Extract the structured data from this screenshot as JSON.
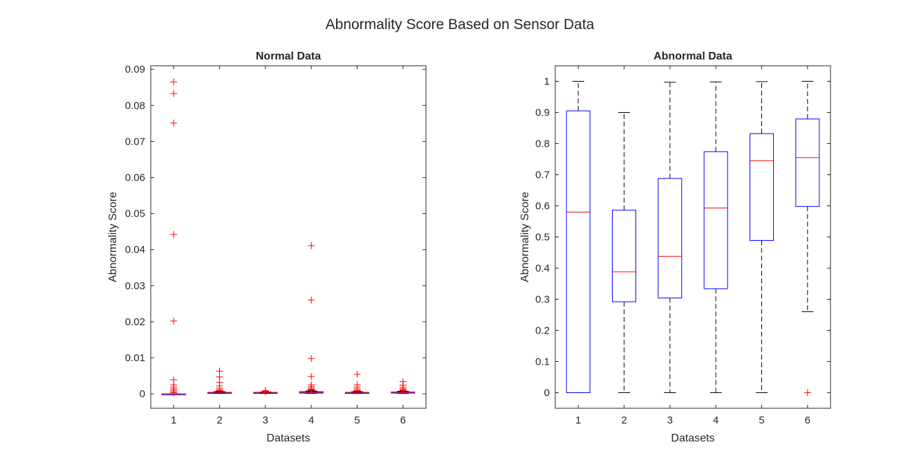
{
  "figure": {
    "title": "Abnormality Score Based on Sensor Data"
  },
  "chart_data": [
    {
      "type": "box",
      "title": "Normal Data",
      "xlabel": "Datasets",
      "ylabel": "Abnormality Score",
      "categories": [
        "1",
        "2",
        "3",
        "4",
        "5",
        "6"
      ],
      "ylim": [
        -0.004,
        0.091
      ],
      "yticks": [
        0,
        0.01,
        0.02,
        0.03,
        0.04,
        0.05,
        0.06,
        0.07,
        0.08,
        0.09
      ],
      "ytick_labels": [
        "0",
        "0.01",
        "0.02",
        "0.03",
        "0.04",
        "0.05",
        "0.06",
        "0.07",
        "0.08",
        "0.09"
      ],
      "colors": {
        "box": "#0000ff",
        "median": "#ff0000",
        "whisker": "#000000",
        "outlier": "#ff0000"
      },
      "boxes": [
        {
          "q1": 0,
          "median": 0,
          "q3": 0,
          "whisker_low": 0,
          "whisker_high": 0,
          "outliers": [
            0.0865,
            0.0833,
            0.0751,
            0.0442,
            0.0202,
            0.0039,
            0.0025,
            0.0019,
            0.0014,
            0.001,
            0.0006,
            0.0003
          ]
        },
        {
          "q1": 0.0002,
          "median": 0.0003,
          "q3": 0.0004,
          "whisker_low": 0.0001,
          "whisker_high": 0.0006,
          "outliers": [
            0.0063,
            0.0047,
            0.0032,
            0.0022,
            0.0016,
            0.0012,
            0.0009,
            0.0008
          ]
        },
        {
          "q1": 0.0002,
          "median": 0.0003,
          "q3": 0.0004,
          "whisker_low": 0.0001,
          "whisker_high": 0.0005,
          "outliers": [
            0.0009,
            0.0007,
            0.0006
          ]
        },
        {
          "q1": 0.0002,
          "median": 0.0004,
          "q3": 0.0006,
          "whisker_low": 0.0001,
          "whisker_high": 0.0008,
          "outliers": [
            0.0411,
            0.026,
            0.0098,
            0.0048,
            0.0025,
            0.002,
            0.0016,
            0.0013,
            0.0011,
            0.001
          ]
        },
        {
          "q1": 0.0002,
          "median": 0.0003,
          "q3": 0.0004,
          "whisker_low": 0.0001,
          "whisker_high": 0.0006,
          "outliers": [
            0.0054,
            0.0025,
            0.0019,
            0.0014,
            0.001,
            0.0008
          ]
        },
        {
          "q1": 0.0002,
          "median": 0.0003,
          "q3": 0.0005,
          "whisker_low": 0.0001,
          "whisker_high": 0.0007,
          "outliers": [
            0.0034,
            0.0024,
            0.0018,
            0.0014,
            0.0011,
            0.0009
          ]
        }
      ]
    },
    {
      "type": "box",
      "title": "Abnormal Data",
      "xlabel": "Datasets",
      "ylabel": "Abnormality Score",
      "categories": [
        "1",
        "2",
        "3",
        "4",
        "5",
        "6"
      ],
      "ylim": [
        -0.05,
        1.05
      ],
      "yticks": [
        0,
        0.1,
        0.2,
        0.3,
        0.4,
        0.5,
        0.6,
        0.7,
        0.8,
        0.9,
        1
      ],
      "ytick_labels": [
        "0",
        "0.1",
        "0.2",
        "0.3",
        "0.4",
        "0.5",
        "0.6",
        "0.7",
        "0.8",
        "0.9",
        "1"
      ],
      "colors": {
        "box": "#0000ff",
        "median": "#ff0000",
        "whisker": "#000000",
        "outlier": "#ff0000"
      },
      "boxes": [
        {
          "q1": 0,
          "median": 0.58,
          "q3": 0.905,
          "whisker_low": 0,
          "whisker_high": 1.0,
          "outliers": []
        },
        {
          "q1": 0.292,
          "median": 0.388,
          "q3": 0.586,
          "whisker_low": 0,
          "whisker_high": 0.9,
          "outliers": []
        },
        {
          "q1": 0.304,
          "median": 0.438,
          "q3": 0.688,
          "whisker_low": 0,
          "whisker_high": 0.997,
          "outliers": []
        },
        {
          "q1": 0.334,
          "median": 0.593,
          "q3": 0.774,
          "whisker_low": 0,
          "whisker_high": 0.998,
          "outliers": []
        },
        {
          "q1": 0.489,
          "median": 0.745,
          "q3": 0.832,
          "whisker_low": 0,
          "whisker_high": 0.999,
          "outliers": []
        },
        {
          "q1": 0.598,
          "median": 0.755,
          "q3": 0.879,
          "whisker_low": 0.26,
          "whisker_high": 1.0,
          "outliers": [
            0
          ]
        }
      ]
    }
  ]
}
